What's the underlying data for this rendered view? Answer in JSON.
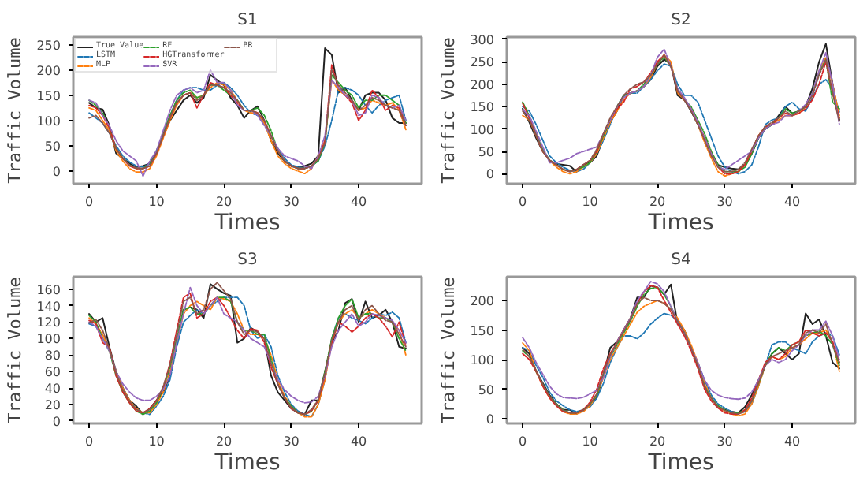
{
  "chart_data": [
    {
      "type": "line",
      "title": "S1",
      "xlabel": "Times",
      "ylabel": "Traffic Volume",
      "x": [
        0,
        1,
        2,
        3,
        4,
        5,
        6,
        7,
        8,
        9,
        10,
        11,
        12,
        13,
        14,
        15,
        16,
        17,
        18,
        19,
        20,
        21,
        22,
        23,
        24,
        25,
        26,
        27,
        28,
        29,
        30,
        31,
        32,
        33,
        34,
        35,
        36,
        37,
        38,
        39,
        40,
        41,
        42,
        43,
        44,
        45,
        46,
        47
      ],
      "xlim": [
        -2.35,
        49.35
      ],
      "ylim": [
        -25,
        265
      ],
      "xticks": [
        0,
        10,
        20,
        30,
        40
      ],
      "yticks": [
        0,
        50,
        100,
        150,
        200,
        250
      ],
      "grid": false,
      "legend": "top left",
      "series": [
        {
          "name": "True Value",
          "color": "#222222",
          "line_style": "solid",
          "values": [
            135,
            125,
            122,
            90,
            35,
            25,
            15,
            8,
            10,
            15,
            40,
            70,
            100,
            120,
            140,
            150,
            135,
            145,
            190,
            180,
            170,
            145,
            130,
            105,
            120,
            128,
            100,
            60,
            35,
            20,
            10,
            8,
            10,
            15,
            30,
            243,
            230,
            155,
            165,
            140,
            120,
            150,
            155,
            155,
            140,
            105,
            95,
            95
          ]
        },
        {
          "name": "LSTM",
          "color": "#1f77b4",
          "line_style": "dashed",
          "values": [
            115,
            105,
            95,
            75,
            50,
            30,
            18,
            10,
            8,
            15,
            40,
            75,
            110,
            140,
            160,
            165,
            165,
            160,
            160,
            170,
            175,
            165,
            150,
            130,
            115,
            110,
            95,
            70,
            45,
            25,
            12,
            8,
            6,
            10,
            20,
            50,
            100,
            160,
            165,
            160,
            150,
            130,
            115,
            130,
            140,
            145,
            150,
            100
          ]
        },
        {
          "name": "MLP",
          "color": "#ff7f0e",
          "line_style": "dashed",
          "values": [
            125,
            120,
            100,
            80,
            40,
            20,
            5,
            -2,
            -2,
            5,
            30,
            65,
            100,
            130,
            150,
            155,
            145,
            150,
            165,
            175,
            170,
            160,
            140,
            120,
            115,
            115,
            95,
            60,
            30,
            15,
            5,
            0,
            -5,
            5,
            30,
            60,
            180,
            160,
            150,
            140,
            120,
            125,
            140,
            135,
            130,
            135,
            120,
            82
          ]
        },
        {
          "name": "RF",
          "color": "#2ca02c",
          "line_style": "dashed",
          "values": [
            140,
            130,
            115,
            85,
            45,
            25,
            12,
            5,
            5,
            15,
            35,
            75,
            110,
            140,
            155,
            160,
            145,
            150,
            170,
            170,
            160,
            150,
            140,
            120,
            120,
            125,
            110,
            80,
            40,
            20,
            10,
            5,
            5,
            10,
            20,
            55,
            190,
            175,
            160,
            150,
            125,
            140,
            140,
            150,
            150,
            140,
            130,
            95
          ]
        },
        {
          "name": "HGTransformer",
          "color": "#d62728",
          "line_style": "dashed",
          "values": [
            130,
            125,
            110,
            85,
            45,
            25,
            10,
            5,
            5,
            10,
            35,
            70,
            105,
            135,
            150,
            155,
            125,
            150,
            175,
            170,
            165,
            150,
            135,
            120,
            120,
            115,
            100,
            70,
            40,
            20,
            10,
            5,
            5,
            10,
            25,
            60,
            210,
            165,
            150,
            135,
            100,
            120,
            160,
            145,
            120,
            130,
            125,
            90
          ]
        },
        {
          "name": "SVR",
          "color": "#9467bd",
          "line_style": "dashed",
          "values": [
            140,
            135,
            110,
            90,
            60,
            40,
            30,
            20,
            -10,
            20,
            40,
            80,
            120,
            150,
            160,
            165,
            155,
            160,
            200,
            175,
            175,
            160,
            130,
            120,
            120,
            110,
            90,
            70,
            45,
            30,
            25,
            20,
            10,
            5,
            30,
            70,
            180,
            165,
            150,
            140,
            110,
            115,
            150,
            145,
            130,
            125,
            130,
            100
          ]
        },
        {
          "name": "BR",
          "color": "#8c564b",
          "line_style": "dashed",
          "values": [
            105,
            110,
            95,
            75,
            45,
            25,
            12,
            6,
            5,
            10,
            35,
            70,
            105,
            135,
            150,
            155,
            140,
            150,
            170,
            170,
            165,
            155,
            140,
            120,
            120,
            115,
            100,
            70,
            40,
            20,
            10,
            5,
            5,
            10,
            25,
            55,
            200,
            170,
            155,
            140,
            120,
            130,
            145,
            140,
            130,
            125,
            120,
            90
          ]
        }
      ]
    },
    {
      "type": "line",
      "title": "S2",
      "xlabel": "Times",
      "ylabel": "Traffic Volume",
      "x": [
        0,
        1,
        2,
        3,
        4,
        5,
        6,
        7,
        8,
        9,
        10,
        11,
        12,
        13,
        14,
        15,
        16,
        17,
        18,
        19,
        20,
        21,
        22,
        23,
        24,
        25,
        26,
        27,
        28,
        29,
        30,
        31,
        32,
        33,
        34,
        35,
        36,
        37,
        38,
        39,
        40,
        41,
        42,
        43,
        44,
        45,
        46,
        47
      ],
      "xlim": [
        -2.35,
        49.35
      ],
      "ylim": [
        -22,
        305
      ],
      "xticks": [
        0,
        10,
        20,
        30,
        40
      ],
      "yticks": [
        0,
        50,
        100,
        150,
        200,
        250,
        300
      ],
      "grid": false,
      "series": [
        {
          "color": "#222222",
          "line_style": "solid",
          "values": [
            145,
            115,
            80,
            50,
            30,
            22,
            20,
            18,
            5,
            20,
            25,
            40,
            80,
            115,
            140,
            175,
            180,
            185,
            195,
            210,
            240,
            255,
            245,
            175,
            165,
            140,
            110,
            80,
            45,
            20,
            15,
            12,
            10,
            20,
            45,
            80,
            100,
            110,
            130,
            150,
            135,
            140,
            150,
            190,
            250,
            290,
            200,
            120
          ]
        },
        {
          "color": "#1f77b4",
          "line_style": "dashed",
          "values": [
            150,
            140,
            110,
            75,
            40,
            25,
            15,
            8,
            5,
            10,
            25,
            45,
            75,
            110,
            150,
            175,
            180,
            180,
            195,
            210,
            230,
            245,
            240,
            200,
            175,
            175,
            160,
            120,
            80,
            40,
            15,
            5,
            0,
            5,
            20,
            60,
            110,
            120,
            125,
            150,
            160,
            145,
            140,
            170,
            200,
            210,
            190,
            138
          ]
        },
        {
          "color": "#ff7f0e",
          "line_style": "dashed",
          "values": [
            130,
            120,
            85,
            50,
            30,
            15,
            5,
            0,
            5,
            15,
            25,
            45,
            80,
            115,
            140,
            165,
            180,
            185,
            195,
            215,
            245,
            265,
            250,
            180,
            165,
            145,
            110,
            70,
            35,
            5,
            -5,
            0,
            5,
            20,
            50,
            85,
            105,
            110,
            120,
            130,
            130,
            135,
            150,
            175,
            230,
            260,
            200,
            130
          ]
        },
        {
          "color": "#2ca02c",
          "line_style": "dashed",
          "values": [
            160,
            130,
            90,
            55,
            30,
            20,
            10,
            5,
            10,
            15,
            25,
            50,
            85,
            120,
            150,
            175,
            180,
            185,
            200,
            220,
            245,
            260,
            240,
            190,
            165,
            150,
            120,
            90,
            50,
            20,
            5,
            5,
            5,
            15,
            45,
            80,
            100,
            110,
            125,
            145,
            135,
            140,
            150,
            180,
            225,
            255,
            160,
            145
          ]
        },
        {
          "color": "#d62728",
          "line_style": "dashed",
          "values": [
            157,
            125,
            85,
            50,
            30,
            20,
            10,
            5,
            10,
            20,
            30,
            50,
            90,
            120,
            145,
            160,
            190,
            195,
            205,
            225,
            250,
            265,
            240,
            185,
            165,
            145,
            115,
            80,
            45,
            15,
            0,
            0,
            5,
            20,
            50,
            85,
            105,
            110,
            125,
            135,
            130,
            135,
            145,
            165,
            200,
            250,
            180,
            125
          ]
        },
        {
          "color": "#9467bd",
          "line_style": "dashed",
          "values": [
            143,
            130,
            95,
            60,
            25,
            25,
            30,
            35,
            45,
            50,
            55,
            60,
            90,
            120,
            150,
            170,
            180,
            185,
            195,
            220,
            260,
            278,
            240,
            190,
            170,
            145,
            115,
            80,
            45,
            15,
            10,
            20,
            30,
            40,
            50,
            80,
            100,
            110,
            115,
            130,
            130,
            140,
            155,
            180,
            230,
            270,
            200,
            110
          ]
        },
        {
          "color": "#8c564b",
          "line_style": "dashed",
          "values": [
            140,
            120,
            85,
            50,
            30,
            20,
            10,
            5,
            10,
            20,
            30,
            55,
            90,
            125,
            150,
            175,
            190,
            200,
            205,
            220,
            245,
            265,
            240,
            185,
            165,
            140,
            110,
            75,
            40,
            15,
            5,
            5,
            10,
            25,
            55,
            85,
            105,
            115,
            125,
            140,
            130,
            140,
            150,
            175,
            220,
            255,
            180,
            116
          ]
        }
      ]
    },
    {
      "type": "line",
      "title": "S3",
      "xlabel": "Times",
      "ylabel": "Traffic Volume",
      "x": [
        0,
        1,
        2,
        3,
        4,
        5,
        6,
        7,
        8,
        9,
        10,
        11,
        12,
        13,
        14,
        15,
        16,
        17,
        18,
        19,
        20,
        21,
        22,
        23,
        24,
        25,
        26,
        27,
        28,
        29,
        30,
        31,
        32,
        33,
        34,
        35,
        36,
        37,
        38,
        39,
        40,
        41,
        42,
        43,
        44,
        45,
        46,
        47
      ],
      "xlim": [
        -2.35,
        49.35
      ],
      "ylim": [
        -3,
        175
      ],
      "xticks": [
        0,
        10,
        20,
        30,
        40
      ],
      "yticks": [
        0,
        20,
        40,
        60,
        80,
        100,
        120,
        140,
        160
      ],
      "grid": false,
      "series": [
        {
          "color": "#222222",
          "line_style": "solid",
          "values": [
            130,
            120,
            125,
            90,
            60,
            40,
            25,
            18,
            8,
            15,
            25,
            35,
            55,
            95,
            135,
            138,
            135,
            125,
            166,
            160,
            155,
            152,
            95,
            100,
            113,
            108,
            100,
            55,
            35,
            25,
            15,
            10,
            8,
            25,
            25,
            60,
            95,
            110,
            143,
            148,
            120,
            145,
            125,
            128,
            135,
            120,
            90,
            88
          ]
        },
        {
          "color": "#1f77b4",
          "line_style": "dashed",
          "values": [
            118,
            115,
            100,
            85,
            60,
            40,
            25,
            15,
            10,
            8,
            18,
            30,
            50,
            90,
            120,
            128,
            135,
            130,
            140,
            145,
            150,
            150,
            150,
            140,
            110,
            100,
            105,
            90,
            55,
            35,
            20,
            12,
            8,
            5,
            20,
            50,
            100,
            125,
            130,
            125,
            122,
            118,
            125,
            130,
            128,
            132,
            125,
            95
          ]
        },
        {
          "color": "#ff7f0e",
          "line_style": "dashed",
          "values": [
            125,
            118,
            105,
            85,
            60,
            40,
            25,
            15,
            10,
            10,
            20,
            35,
            60,
            95,
            130,
            140,
            145,
            140,
            135,
            150,
            148,
            145,
            130,
            110,
            105,
            105,
            100,
            80,
            50,
            30,
            18,
            10,
            5,
            5,
            20,
            50,
            95,
            120,
            130,
            135,
            125,
            130,
            135,
            130,
            125,
            120,
            110,
            80
          ]
        },
        {
          "color": "#2ca02c",
          "line_style": "dashed",
          "values": [
            128,
            120,
            100,
            85,
            55,
            35,
            22,
            12,
            8,
            12,
            22,
            40,
            65,
            100,
            135,
            138,
            130,
            130,
            140,
            150,
            150,
            145,
            120,
            110,
            110,
            105,
            105,
            75,
            45,
            28,
            18,
            10,
            8,
            12,
            25,
            60,
            100,
            125,
            140,
            148,
            125,
            130,
            130,
            125,
            125,
            120,
            100,
            85
          ]
        },
        {
          "color": "#d62728",
          "line_style": "dashed",
          "values": [
            122,
            118,
            95,
            90,
            55,
            35,
            22,
            12,
            10,
            15,
            25,
            40,
            70,
            110,
            150,
            155,
            125,
            130,
            145,
            150,
            140,
            125,
            110,
            100,
            112,
            110,
            95,
            65,
            45,
            28,
            15,
            10,
            8,
            12,
            25,
            55,
            95,
            120,
            115,
            108,
            115,
            125,
            130,
            125,
            115,
            102,
            120,
            92
          ]
        },
        {
          "color": "#9467bd",
          "line_style": "dashed",
          "values": [
            120,
            115,
            100,
            85,
            60,
            45,
            35,
            28,
            25,
            25,
            30,
            38,
            55,
            95,
            130,
            162,
            140,
            130,
            140,
            150,
            130,
            125,
            120,
            110,
            100,
            95,
            90,
            70,
            50,
            38,
            30,
            25,
            22,
            23,
            30,
            55,
            90,
            110,
            120,
            130,
            115,
            120,
            130,
            128,
            125,
            122,
            110,
            95
          ]
        },
        {
          "color": "#8c564b",
          "line_style": "dashed",
          "values": [
            119,
            123,
            110,
            88,
            58,
            38,
            24,
            14,
            10,
            14,
            24,
            42,
            68,
            105,
            145,
            150,
            130,
            135,
            160,
            168,
            158,
            148,
            120,
            105,
            110,
            108,
            100,
            70,
            45,
            28,
            16,
            10,
            8,
            14,
            26,
            58,
            98,
            120,
            135,
            140,
            122,
            135,
            140,
            130,
            122,
            120,
            105,
            90
          ]
        }
      ]
    },
    {
      "type": "line",
      "title": "S4",
      "xlabel": "Times",
      "ylabel": "Traffic Volume",
      "x": [
        0,
        1,
        2,
        3,
        4,
        5,
        6,
        7,
        8,
        9,
        10,
        11,
        12,
        13,
        14,
        15,
        16,
        17,
        18,
        19,
        20,
        21,
        22,
        23,
        24,
        25,
        26,
        27,
        28,
        29,
        30,
        31,
        32,
        33,
        34,
        35,
        36,
        37,
        38,
        39,
        40,
        41,
        42,
        43,
        44,
        45,
        46,
        47
      ],
      "xlim": [
        -2.35,
        49.35
      ],
      "ylim": [
        -8,
        240
      ],
      "xticks": [
        0,
        10,
        20,
        30,
        40
      ],
      "yticks": [
        0,
        50,
        100,
        150,
        200
      ],
      "grid": false,
      "series": [
        {
          "color": "#222222",
          "line_style": "solid",
          "values": [
            120,
            110,
            80,
            60,
            40,
            25,
            15,
            15,
            8,
            15,
            25,
            35,
            75,
            120,
            130,
            150,
            170,
            205,
            205,
            225,
            222,
            210,
            227,
            160,
            150,
            120,
            90,
            55,
            35,
            20,
            15,
            12,
            10,
            20,
            40,
            65,
            90,
            110,
            120,
            110,
            100,
            110,
            178,
            160,
            168,
            140,
            95,
            85
          ]
        },
        {
          "color": "#1f77b4",
          "line_style": "dashed",
          "values": [
            120,
            115,
            90,
            70,
            45,
            30,
            22,
            15,
            12,
            15,
            20,
            35,
            60,
            95,
            120,
            140,
            140,
            135,
            145,
            160,
            170,
            178,
            175,
            165,
            150,
            120,
            95,
            65,
            40,
            25,
            18,
            12,
            10,
            12,
            25,
            55,
            90,
            125,
            130,
            130,
            120,
            115,
            110,
            130,
            140,
            145,
            140,
            108
          ]
        },
        {
          "color": "#ff7f0e",
          "line_style": "dashed",
          "values": [
            128,
            115,
            80,
            55,
            35,
            22,
            12,
            8,
            8,
            12,
            22,
            40,
            70,
            100,
            120,
            140,
            160,
            180,
            190,
            195,
            200,
            195,
            185,
            170,
            150,
            125,
            95,
            60,
            35,
            20,
            12,
            8,
            5,
            8,
            25,
            55,
            90,
            105,
            100,
            105,
            120,
            125,
            135,
            145,
            145,
            150,
            130,
            80
          ]
        },
        {
          "color": "#2ca02c",
          "line_style": "dashed",
          "values": [
            115,
            105,
            80,
            58,
            38,
            25,
            15,
            10,
            10,
            15,
            25,
            40,
            75,
            105,
            125,
            145,
            165,
            190,
            210,
            220,
            222,
            210,
            190,
            165,
            145,
            120,
            90,
            55,
            35,
            22,
            15,
            10,
            10,
            15,
            30,
            60,
            90,
            110,
            120,
            115,
            125,
            130,
            140,
            145,
            148,
            140,
            125,
            90
          ]
        },
        {
          "color": "#d62728",
          "line_style": "dashed",
          "values": [
            110,
            100,
            80,
            55,
            35,
            22,
            12,
            10,
            10,
            15,
            28,
            50,
            85,
            110,
            130,
            150,
            170,
            195,
            215,
            225,
            222,
            200,
            180,
            160,
            140,
            115,
            85,
            50,
            30,
            18,
            10,
            8,
            8,
            15,
            35,
            65,
            95,
            105,
            100,
            110,
            125,
            130,
            150,
            145,
            140,
            145,
            130,
            95
          ]
        },
        {
          "color": "#9467bd",
          "line_style": "dashed",
          "values": [
            137,
            120,
            95,
            75,
            55,
            42,
            36,
            35,
            34,
            36,
            42,
            48,
            70,
            105,
            130,
            150,
            170,
            200,
            215,
            232,
            228,
            215,
            190,
            165,
            145,
            120,
            95,
            65,
            48,
            40,
            36,
            34,
            33,
            35,
            45,
            65,
            90,
            100,
            95,
            100,
            115,
            125,
            140,
            150,
            150,
            165,
            140,
            100
          ]
        },
        {
          "color": "#8c564b",
          "line_style": "dashed",
          "values": [
            118,
            105,
            82,
            58,
            38,
            24,
            14,
            10,
            10,
            14,
            25,
            42,
            78,
            108,
            128,
            148,
            168,
            195,
            205,
            200,
            200,
            195,
            185,
            165,
            145,
            120,
            90,
            55,
            35,
            20,
            14,
            10,
            8,
            12,
            30,
            60,
            90,
            105,
            110,
            115,
            120,
            125,
            145,
            150,
            145,
            160,
            125,
            95
          ]
        }
      ]
    }
  ]
}
